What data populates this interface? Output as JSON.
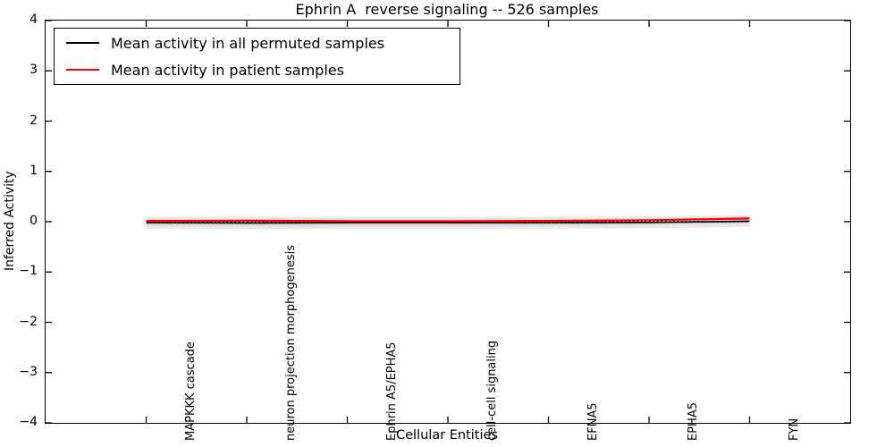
{
  "chart_data": {
    "type": "line",
    "title": "Ephrin A  reverse signaling -- 526 samples",
    "xlabel": "Cellular Entities",
    "ylabel": "Inferred Activity",
    "xlim": [
      0,
      8
    ],
    "ylim": [
      -4,
      4
    ],
    "grid": false,
    "yticks": [
      4,
      3,
      2,
      1,
      0,
      -1,
      -2,
      -3,
      -4
    ],
    "ytick_labels": [
      "4",
      "3",
      "2",
      "1",
      "0",
      "−1",
      "−2",
      "−3",
      "−4"
    ],
    "x_positions": [
      1,
      2,
      3,
      4,
      5,
      6,
      7
    ],
    "categories": [
      "MAPKKK cascade",
      "neuron projection morphogenesis",
      "Ephrin A5/EPHA5",
      "cell-cell signaling",
      "EFNA5",
      "EPHA5",
      "FYN"
    ],
    "legend": {
      "position": "upper left"
    },
    "series": [
      {
        "name": "Mean activity in all permuted samples",
        "color": "#000000",
        "linewidth": 1.6,
        "values": [
          -0.02,
          -0.025,
          -0.02,
          -0.02,
          -0.02,
          -0.015,
          0.01
        ]
      },
      {
        "name": "Mean activity in patient samples",
        "color": "#ff0000",
        "linewidth": 2.2,
        "values": [
          0.015,
          0.02,
          0.01,
          0.01,
          0.015,
          0.03,
          0.065
        ]
      }
    ],
    "reference_line": {
      "y": 0,
      "style": "dotted",
      "color": "#000000"
    },
    "bands": [
      {
        "name": "permuted-std-band",
        "color": "#000000",
        "opacity": 0.09,
        "upper": [
          0.1,
          0.1,
          0.1,
          0.1,
          0.1,
          0.11,
          0.13
        ],
        "lower": [
          -0.145,
          -0.145,
          -0.145,
          -0.145,
          -0.14,
          -0.13,
          -0.1
        ]
      },
      {
        "name": "patient-std-band",
        "color": "#000000",
        "opacity": 0.09,
        "upper": [
          0.05,
          0.05,
          0.05,
          0.05,
          0.05,
          0.06,
          0.09
        ],
        "lower": [
          -0.075,
          -0.075,
          -0.075,
          -0.075,
          -0.07,
          -0.06,
          -0.03
        ]
      }
    ]
  }
}
